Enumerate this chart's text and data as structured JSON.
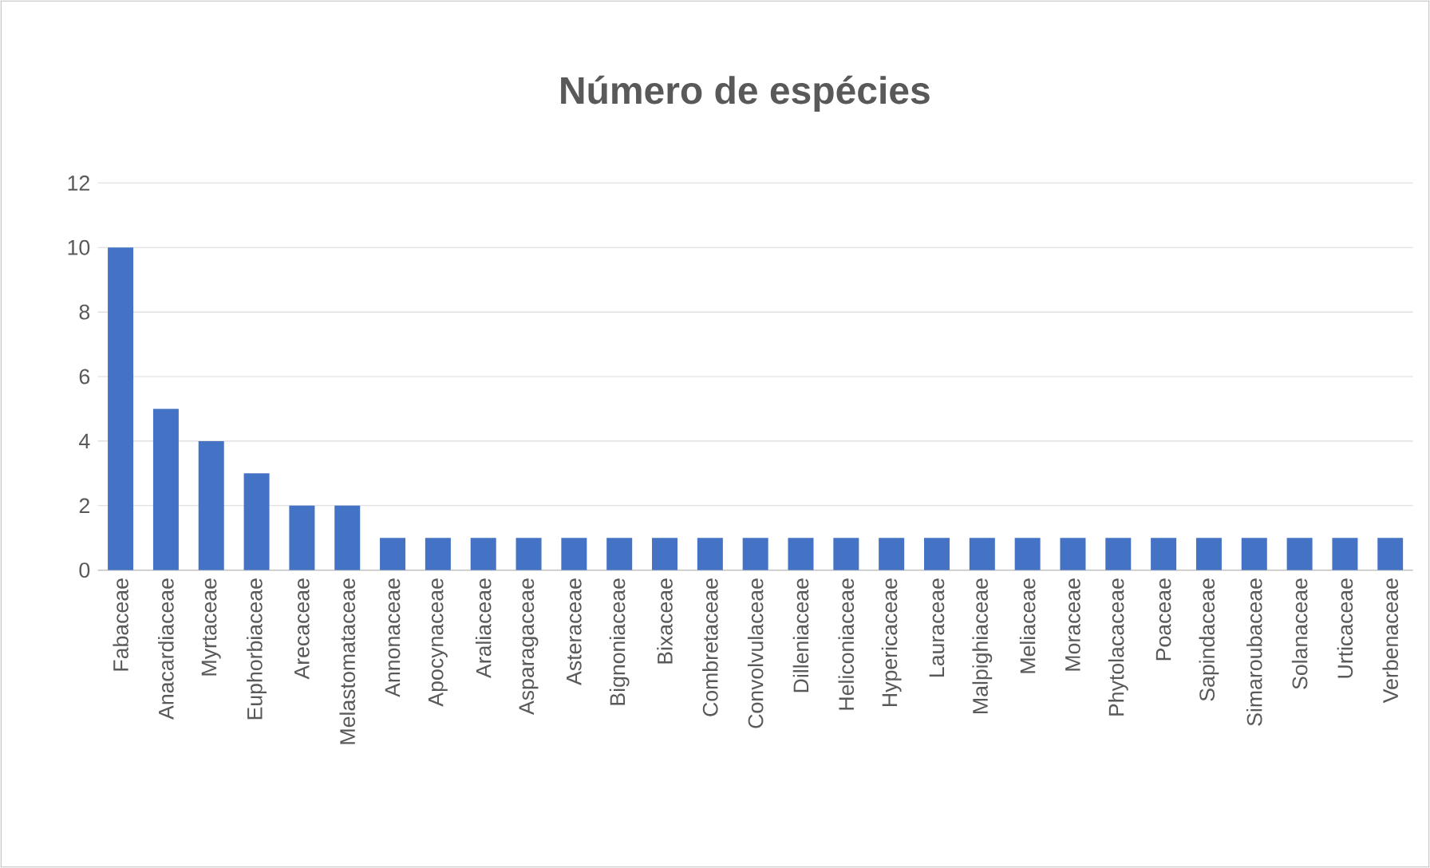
{
  "chart_data": {
    "type": "bar",
    "title": "Número de espécies",
    "categories": [
      "Fabaceae",
      "Anacardiaceae",
      "Myrtaceae",
      "Euphorbiaceae",
      "Arecaceae",
      "Melastomataceae",
      "Annonaceae",
      "Apocynaceae",
      "Araliaceae",
      "Asparagaceae",
      "Asteraceae",
      "Bignoniaceae",
      "Bixaceae",
      "Combretaceae",
      "Convolvulaceae",
      "Dilleniaceae",
      "Heliconiaceae",
      "Hypericaceae",
      "Lauraceae",
      "Malpighiaceae",
      "Meliaceae",
      "Moraceae",
      "Phytolacaceae",
      "Poaceae",
      "Sapindaceae",
      "Simaroubaceae",
      "Solanaceae",
      "Urticaceae",
      "Verbenaceae"
    ],
    "values": [
      10,
      5,
      4,
      3,
      2,
      2,
      1,
      1,
      1,
      1,
      1,
      1,
      1,
      1,
      1,
      1,
      1,
      1,
      1,
      1,
      1,
      1,
      1,
      1,
      1,
      1,
      1,
      1,
      1
    ],
    "color": "#4472c4",
    "ylim": [
      0,
      12
    ],
    "yticks": [
      0,
      2,
      4,
      6,
      8,
      10,
      12
    ],
    "grid": "y"
  }
}
